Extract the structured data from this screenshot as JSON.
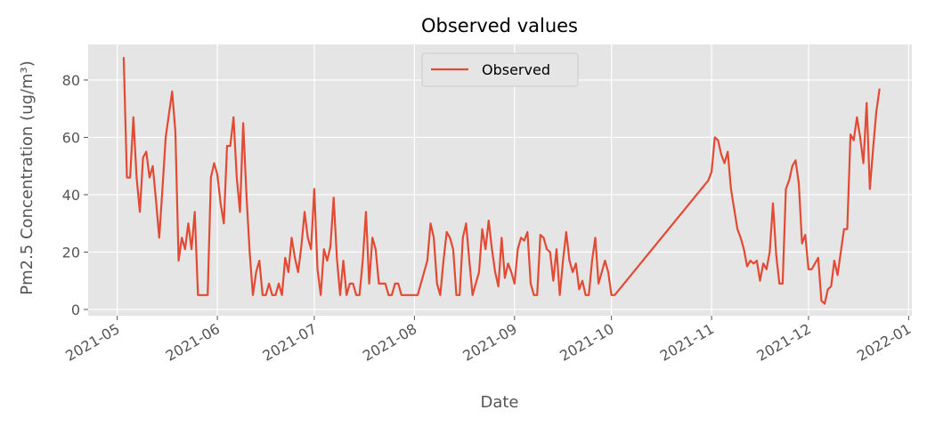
{
  "chart_data": {
    "type": "line",
    "title": "Observed values",
    "x_label": "Date",
    "y_label": "Pm2.5 Concentration (ug/m³)",
    "x": [
      18750,
      18751,
      18752,
      18753,
      18754,
      18755,
      18756,
      18757,
      18758,
      18759,
      18760,
      18761,
      18762,
      18763,
      18765,
      18766,
      18767,
      18768,
      18769,
      18770,
      18771,
      18772,
      18773,
      18774,
      18775,
      18776,
      18777,
      18778,
      18779,
      18780,
      18781,
      18782,
      18783,
      18784,
      18785,
      18786,
      18787,
      18788,
      18789,
      18790,
      18791,
      18792,
      18793,
      18794,
      18795,
      18796,
      18797,
      18798,
      18799,
      18800,
      18801,
      18802,
      18803,
      18804,
      18805,
      18806,
      18807,
      18808,
      18809,
      18810,
      18811,
      18812,
      18813,
      18814,
      18815,
      18816,
      18817,
      18818,
      18819,
      18820,
      18821,
      18822,
      18823,
      18824,
      18825,
      18826,
      18827,
      18828,
      18829,
      18830,
      18831,
      18832,
      18833,
      18834,
      18835,
      18836,
      18837,
      18838,
      18839,
      18840,
      18841,
      18844,
      18845,
      18846,
      18847,
      18848,
      18849,
      18850,
      18851,
      18852,
      18853,
      18854,
      18855,
      18856,
      18857,
      18858,
      18859,
      18860,
      18861,
      18862,
      18863,
      18864,
      18865,
      18866,
      18867,
      18868,
      18869,
      18870,
      18871,
      18872,
      18873,
      18874,
      18875,
      18876,
      18877,
      18878,
      18879,
      18880,
      18881,
      18882,
      18883,
      18884,
      18885,
      18886,
      18887,
      18888,
      18889,
      18890,
      18891,
      18892,
      18893,
      18894,
      18895,
      18896,
      18897,
      18898,
      18899,
      18900,
      18901,
      18902,
      18931,
      18932,
      18933,
      18934,
      18935,
      18936,
      18937,
      18938,
      18939,
      18940,
      18941,
      18942,
      18943,
      18944,
      18945,
      18946,
      18947,
      18948,
      18949,
      18950,
      18951,
      18952,
      18953,
      18954,
      18955,
      18956,
      18957,
      18958,
      18959,
      18960,
      18961,
      18962,
      18963,
      18964,
      18965,
      18966,
      18967,
      18968,
      18969,
      18970,
      18971,
      18972,
      18973,
      18974,
      18975,
      18976,
      18977,
      18978,
      18979,
      18980,
      18981,
      18982,
      18983,
      18984
    ],
    "series": [
      {
        "name": "Observed",
        "color": "#e24a33",
        "values": [
          88,
          46,
          46,
          67,
          46,
          34,
          53,
          55,
          46,
          50,
          38,
          25,
          42,
          60,
          76,
          62,
          17,
          25,
          21,
          30,
          21,
          34,
          5,
          5,
          5,
          5,
          46,
          51,
          47,
          37,
          30,
          57,
          57,
          67,
          46,
          34,
          65,
          40,
          20,
          5,
          13,
          17,
          5,
          5,
          9,
          5,
          5,
          9,
          5,
          18,
          13,
          25,
          18,
          13,
          22,
          34,
          25,
          21,
          42,
          14,
          5,
          21,
          17,
          22,
          39,
          18,
          5,
          17,
          5,
          9,
          9,
          5,
          5,
          17,
          34,
          9,
          25,
          21,
          9,
          9,
          9,
          5,
          5,
          9,
          9,
          5,
          5,
          5,
          5,
          5,
          5,
          17,
          30,
          25,
          9,
          5,
          17,
          27,
          25,
          21,
          5,
          5,
          25,
          30,
          17,
          5,
          9,
          13,
          28,
          21,
          31,
          21,
          13,
          8,
          25,
          11,
          16,
          13,
          9,
          21,
          25,
          24,
          27,
          9,
          5,
          5,
          26,
          25,
          21,
          20,
          10,
          21,
          5,
          17,
          27,
          17,
          13,
          16,
          7,
          10,
          5,
          5,
          17,
          25,
          9,
          13,
          17,
          13,
          5,
          5,
          45,
          48,
          60,
          59,
          54,
          51,
          55,
          42,
          35,
          28,
          25,
          21,
          15,
          17,
          16,
          17,
          10,
          16,
          14,
          20,
          37,
          19,
          9,
          9,
          42,
          45,
          50,
          52,
          44,
          23,
          26,
          14,
          14,
          16,
          18,
          3,
          2,
          7,
          8,
          17,
          12,
          20,
          28,
          28,
          61,
          59,
          67,
          60,
          51,
          72,
          42,
          56,
          69,
          77
        ]
      }
    ],
    "xlim": [
      18739,
      18994
    ],
    "ylim": [
      -2.2,
      92.4
    ],
    "xticks": [
      {
        "value": 18748,
        "label": "2021-05"
      },
      {
        "value": 18779,
        "label": "2021-06"
      },
      {
        "value": 18809,
        "label": "2021-07"
      },
      {
        "value": 18840,
        "label": "2021-08"
      },
      {
        "value": 18871,
        "label": "2021-09"
      },
      {
        "value": 18901,
        "label": "2021-10"
      },
      {
        "value": 18932,
        "label": "2021-11"
      },
      {
        "value": 18962,
        "label": "2021-12"
      },
      {
        "value": 18993,
        "label": "2022-01"
      }
    ],
    "yticks": [
      0,
      20,
      40,
      60,
      80
    ],
    "grid": true,
    "legend": "upper center"
  }
}
